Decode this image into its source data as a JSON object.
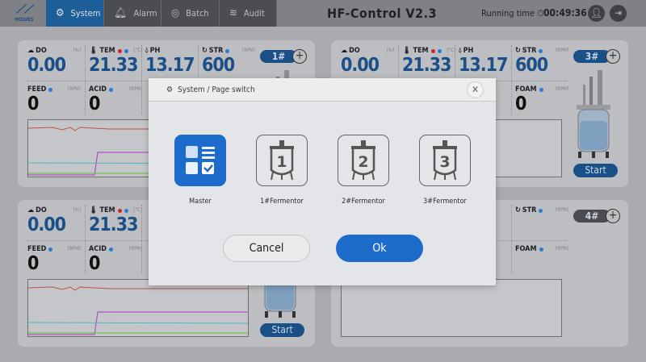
{
  "header": {
    "logo_text": "HOLVES",
    "tabs": [
      {
        "label": "System",
        "icon": "gear-icon",
        "active": true
      },
      {
        "label": "Alarm",
        "icon": "bell-icon"
      },
      {
        "label": "Batch",
        "icon": "target-icon"
      },
      {
        "label": "Audit",
        "icon": "audit-search-icon"
      }
    ],
    "title": "HF-Control V2.3",
    "running_time_label": "Running time",
    "running_time": "00:49:36"
  },
  "colors": {
    "accent": "#1d6ccc",
    "value_blue": "#1b4f88"
  },
  "panels": [
    {
      "id": "1#",
      "active": true,
      "row1": [
        {
          "label": "DO",
          "icon": "cloud-icon",
          "unit": "[%]",
          "value": "0.00"
        },
        {
          "label": "TEM",
          "icon": "thermometer-icon",
          "dots": [
            "#d3232a",
            "#2a7ad6"
          ],
          "unit": "[°C]",
          "value": "21.33"
        },
        {
          "label": "PH",
          "icon": "drop-icon",
          "unit": "",
          "value": "13.17"
        },
        {
          "label": "STR",
          "icon": "refresh-icon",
          "dots": [
            "#2a7ad6"
          ],
          "unit": "[RPM]",
          "value": "600"
        }
      ],
      "row2": [
        {
          "label": "FEED",
          "dots": [
            "#2a7ad6"
          ],
          "unit": "[RPM]",
          "value": "0"
        },
        {
          "label": "ACID",
          "dots": [
            "#2a7ad6"
          ],
          "unit": "[RPM]",
          "value": "0"
        },
        null,
        null
      ],
      "start_label": "",
      "trend": true
    },
    {
      "id": "3#",
      "active": true,
      "row1": [
        {
          "label": "DO",
          "icon": "cloud-icon",
          "unit": "[%]",
          "value": "0.00"
        },
        {
          "label": "TEM",
          "icon": "thermometer-icon",
          "dots": [
            "#d3232a",
            "#2a7ad6"
          ],
          "unit": "[°C]",
          "value": "21.33"
        },
        {
          "label": "PH",
          "icon": "drop-icon",
          "unit": "",
          "value": "13.17"
        },
        {
          "label": "STR",
          "icon": "refresh-icon",
          "dots": [
            "#2a7ad6"
          ],
          "unit": "[RPM]",
          "value": "600"
        }
      ],
      "row2": [
        null,
        null,
        null,
        {
          "label": "FOAM",
          "dots": [
            "#2a7ad6"
          ],
          "unit": "[RPM]",
          "value": "0"
        }
      ],
      "start_label": "Start",
      "trend": false
    },
    {
      "id": "2#",
      "active": true,
      "row1": [
        {
          "label": "DO",
          "icon": "cloud-icon",
          "unit": "[%]",
          "value": "0.00"
        },
        {
          "label": "TEM",
          "icon": "thermometer-icon",
          "dots": [
            "#d3232a",
            "#2a7ad6"
          ],
          "unit": "[°C]",
          "value": "21.33"
        },
        null,
        null
      ],
      "row2": [
        {
          "label": "FEED",
          "dots": [
            "#2a7ad6"
          ],
          "unit": "[RPM]",
          "value": "0"
        },
        {
          "label": "ACID",
          "dots": [
            "#2a7ad6"
          ],
          "unit": "[RPM]",
          "value": "0"
        },
        null,
        null
      ],
      "start_label": "Start",
      "trend": true
    },
    {
      "id": "4#",
      "active": false,
      "row1": [
        null,
        null,
        null,
        {
          "label": "STR",
          "icon": "refresh-icon",
          "dots": [
            "#2a7ad6"
          ],
          "unit": "[RPM]",
          "value": ""
        }
      ],
      "row2": [
        null,
        null,
        null,
        {
          "label": "FOAM",
          "dots": [
            "#2a7ad6"
          ],
          "unit": "[RPM]",
          "value": ""
        }
      ],
      "start_label": "",
      "trend": false
    }
  ],
  "dialog": {
    "title": "System / Page switch",
    "options": [
      {
        "label": "Master",
        "selected": true
      },
      {
        "label": "1#Fermentor",
        "num": "1"
      },
      {
        "label": "2#Fermentor",
        "num": "2"
      },
      {
        "label": "3#Fermentor",
        "num": "3"
      }
    ],
    "cancel_label": "Cancel",
    "ok_label": "Ok"
  }
}
